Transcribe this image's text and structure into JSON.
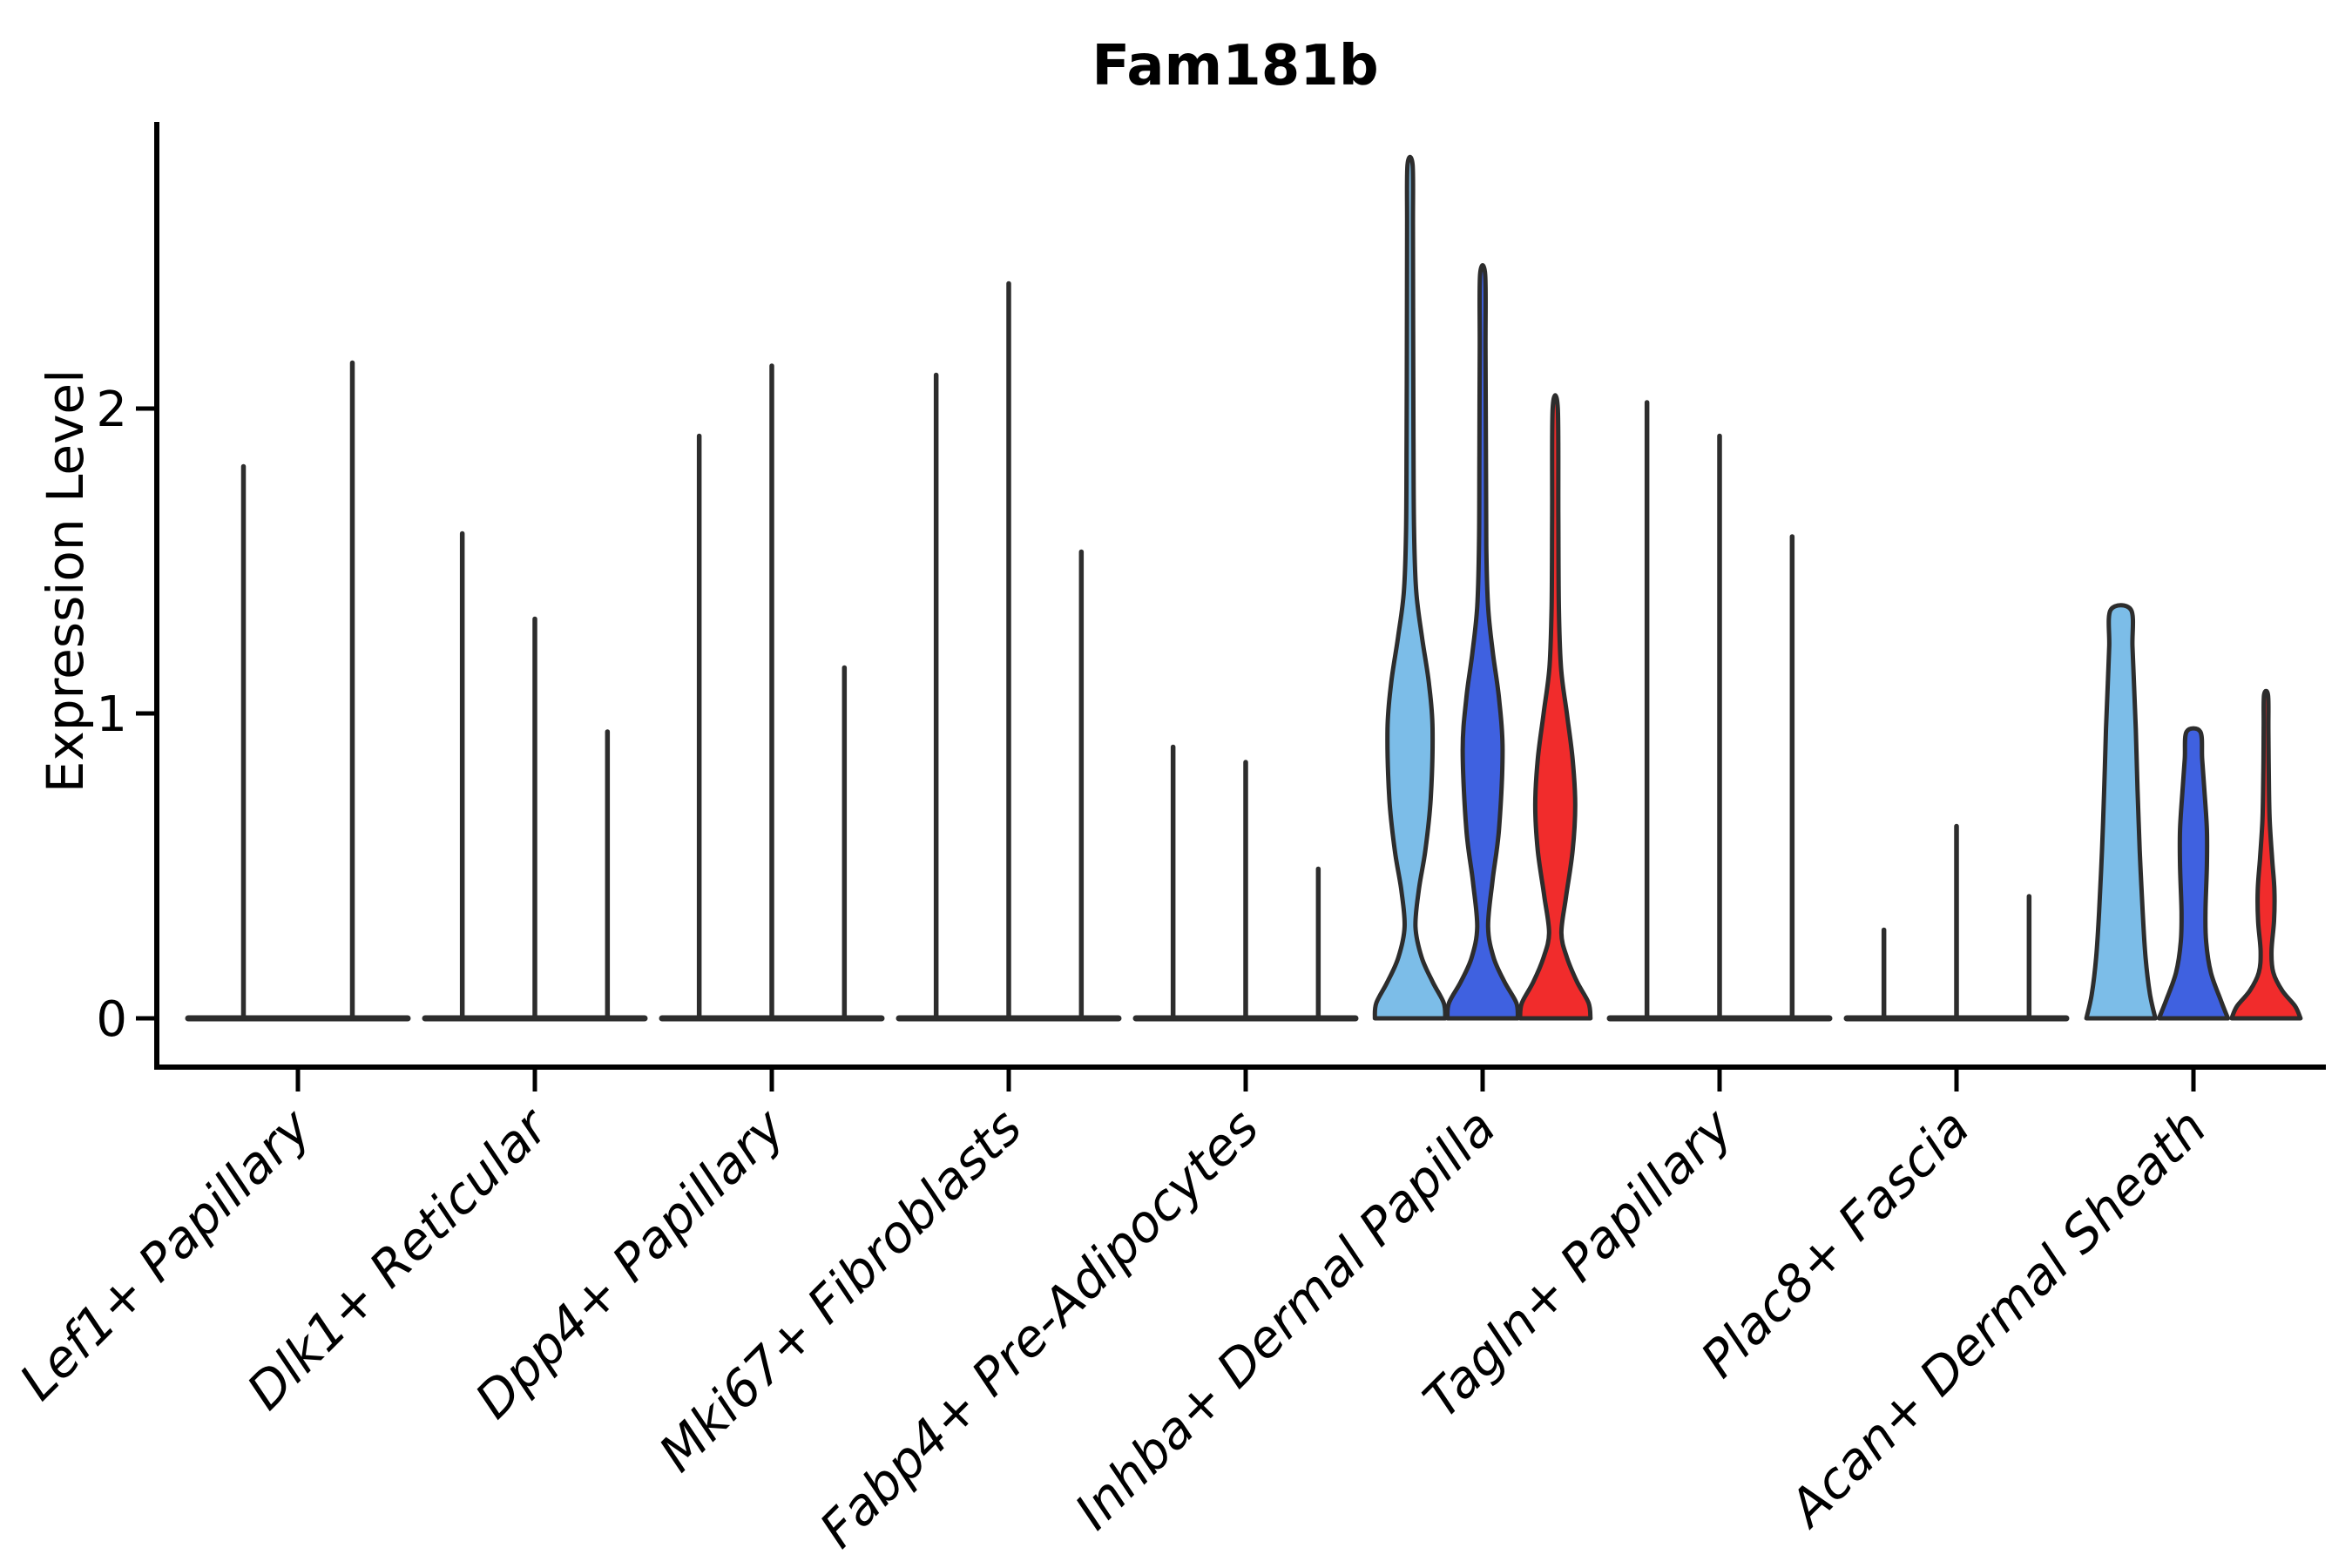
{
  "title": "Fam181b",
  "ylabel": "Expression Level",
  "chart_data": {
    "type": "violin",
    "title": "Fam181b",
    "xlabel": "",
    "ylabel": "Expression Level",
    "ylim": [
      0,
      2.95
    ],
    "yticks": [
      "0",
      "1",
      "2"
    ],
    "grid": false,
    "legend": "none",
    "split_colors": [
      "#7cbde8",
      "#3f61e0",
      "#f12c2c"
    ],
    "outline_color": "#2d2d2d",
    "categories": [
      "Lef1+ Papillary",
      "Dlk1+ Reticular",
      "Dpp4+ Papillary",
      "Mki67+ Fibroblasts",
      "Fabp4+ Pre-Adipocytes",
      "Inhba+ Dermal Papilla",
      "Tagln+ Papillary",
      "Plac8+ Fascia",
      "Acan+ Dermal Sheath"
    ],
    "groups": [
      {
        "category": "Lef1+ Papillary",
        "violins": [
          {
            "kind": "spike",
            "max": 1.81
          },
          {
            "kind": "spike",
            "max": 2.15
          }
        ]
      },
      {
        "category": "Dlk1+ Reticular",
        "violins": [
          {
            "kind": "spike",
            "max": 1.59
          },
          {
            "kind": "spike",
            "max": 1.31
          },
          {
            "kind": "spike",
            "max": 0.94
          }
        ]
      },
      {
        "category": "Dpp4+ Papillary",
        "violins": [
          {
            "kind": "spike",
            "max": 1.91
          },
          {
            "kind": "spike",
            "max": 2.14
          },
          {
            "kind": "spike",
            "max": 1.15
          }
        ]
      },
      {
        "category": "Mki67+ Fibroblasts",
        "violins": [
          {
            "kind": "spike",
            "max": 2.11
          },
          {
            "kind": "spike",
            "max": 2.41
          },
          {
            "kind": "spike",
            "max": 1.53
          }
        ]
      },
      {
        "category": "Fabp4+ Pre-Adipocytes",
        "violins": [
          {
            "kind": "spike",
            "max": 0.89
          },
          {
            "kind": "spike",
            "max": 0.84
          },
          {
            "kind": "spike",
            "max": 0.49
          }
        ]
      },
      {
        "category": "Inhba+ Dermal Papilla",
        "violins": [
          {
            "kind": "violin",
            "color": "#7cbde8",
            "max": 2.8,
            "profile": [
              [
                0,
                0.97
              ],
              [
                0.05,
                0.93
              ],
              [
                0.12,
                0.62
              ],
              [
                0.2,
                0.32
              ],
              [
                0.3,
                0.15
              ],
              [
                0.42,
                0.24
              ],
              [
                0.55,
                0.42
              ],
              [
                0.72,
                0.57
              ],
              [
                0.95,
                0.62
              ],
              [
                1.1,
                0.52
              ],
              [
                1.25,
                0.33
              ],
              [
                1.4,
                0.17
              ],
              [
                1.6,
                0.11
              ],
              [
                1.9,
                0.095
              ],
              [
                2.3,
                0.085
              ],
              [
                2.6,
                0.08
              ],
              [
                2.8,
                0.07
              ]
            ]
          },
          {
            "kind": "violin",
            "color": "#3f61e0",
            "max": 2.44,
            "profile": [
              [
                0,
                0.97
              ],
              [
                0.05,
                0.93
              ],
              [
                0.12,
                0.6
              ],
              [
                0.2,
                0.3
              ],
              [
                0.3,
                0.15
              ],
              [
                0.45,
                0.27
              ],
              [
                0.62,
                0.45
              ],
              [
                0.88,
                0.55
              ],
              [
                1.05,
                0.45
              ],
              [
                1.2,
                0.28
              ],
              [
                1.35,
                0.15
              ],
              [
                1.55,
                0.1
              ],
              [
                1.85,
                0.09
              ],
              [
                2.2,
                0.08
              ],
              [
                2.44,
                0.07
              ]
            ]
          },
          {
            "kind": "violin",
            "color": "#f12c2c",
            "max": 2.0,
            "profile": [
              [
                0,
                0.97
              ],
              [
                0.05,
                0.92
              ],
              [
                0.12,
                0.6
              ],
              [
                0.2,
                0.32
              ],
              [
                0.28,
                0.17
              ],
              [
                0.4,
                0.3
              ],
              [
                0.55,
                0.48
              ],
              [
                0.7,
                0.55
              ],
              [
                0.85,
                0.48
              ],
              [
                1.0,
                0.32
              ],
              [
                1.15,
                0.16
              ],
              [
                1.35,
                0.1
              ],
              [
                1.65,
                0.085
              ],
              [
                2.0,
                0.07
              ]
            ]
          }
        ]
      },
      {
        "category": "Tagln+ Papillary",
        "violins": [
          {
            "kind": "spike",
            "max": 2.02
          },
          {
            "kind": "spike",
            "max": 1.91
          },
          {
            "kind": "spike",
            "max": 1.58
          }
        ]
      },
      {
        "category": "Plac8+ Fascia",
        "violins": [
          {
            "kind": "spike",
            "max": 0.29
          },
          {
            "kind": "spike",
            "max": 0.63
          },
          {
            "kind": "spike",
            "max": 0.4
          }
        ]
      },
      {
        "category": "Acan+ Dermal Sheath",
        "violins": [
          {
            "kind": "violin",
            "color": "#7cbde8",
            "max": 1.34,
            "profile": [
              [
                0,
                0.95
              ],
              [
                0.08,
                0.8
              ],
              [
                0.2,
                0.68
              ],
              [
                0.35,
                0.6
              ],
              [
                0.55,
                0.52
              ],
              [
                0.75,
                0.46
              ],
              [
                0.95,
                0.41
              ],
              [
                1.1,
                0.36
              ],
              [
                1.22,
                0.32
              ],
              [
                1.34,
                0.28
              ]
            ]
          },
          {
            "kind": "violin",
            "color": "#3f61e0",
            "max": 0.94,
            "profile": [
              [
                0,
                0.95
              ],
              [
                0.06,
                0.75
              ],
              [
                0.15,
                0.48
              ],
              [
                0.25,
                0.35
              ],
              [
                0.35,
                0.33
              ],
              [
                0.5,
                0.37
              ],
              [
                0.62,
                0.37
              ],
              [
                0.75,
                0.3
              ],
              [
                0.85,
                0.24
              ],
              [
                0.94,
                0.19
              ]
            ]
          },
          {
            "kind": "violin",
            "color": "#f12c2c",
            "max": 1.06,
            "profile": [
              [
                0,
                0.95
              ],
              [
                0.04,
                0.8
              ],
              [
                0.09,
                0.45
              ],
              [
                0.15,
                0.2
              ],
              [
                0.22,
                0.15
              ],
              [
                0.32,
                0.22
              ],
              [
                0.42,
                0.23
              ],
              [
                0.52,
                0.17
              ],
              [
                0.65,
                0.1
              ],
              [
                0.8,
                0.075
              ],
              [
                0.95,
                0.065
              ],
              [
                1.06,
                0.055
              ]
            ]
          }
        ]
      }
    ]
  }
}
